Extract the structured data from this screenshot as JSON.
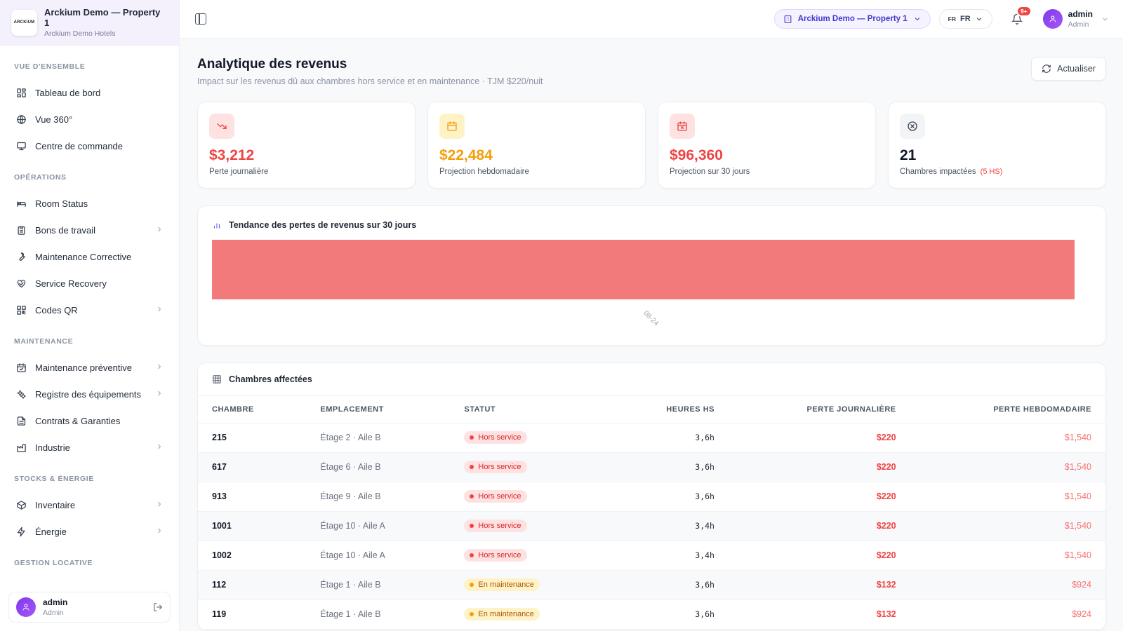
{
  "brand": {
    "logo_text": "ARCKIUM",
    "title": "Arckium Demo — Property 1",
    "subtitle": "Arckium Demo Hotels"
  },
  "sidebar": {
    "sections": [
      {
        "title": "VUE D'ENSEMBLE",
        "items": [
          {
            "label": "Tableau de bord",
            "icon": "dashboard-icon",
            "chevron": false
          },
          {
            "label": "Vue 360°",
            "icon": "globe-icon",
            "chevron": false
          },
          {
            "label": "Centre de commande",
            "icon": "monitor-icon",
            "chevron": false
          }
        ]
      },
      {
        "title": "OPÉRATIONS",
        "items": [
          {
            "label": "Room Status",
            "icon": "bed-icon",
            "chevron": false
          },
          {
            "label": "Bons de travail",
            "icon": "clipboard-icon",
            "chevron": true
          },
          {
            "label": "Maintenance Corrective",
            "icon": "wrench-icon",
            "chevron": false
          },
          {
            "label": "Service Recovery",
            "icon": "heart-handshake-icon",
            "chevron": false
          },
          {
            "label": "Codes QR",
            "icon": "qr-code-icon",
            "chevron": true
          }
        ]
      },
      {
        "title": "MAINTENANCE",
        "items": [
          {
            "label": "Maintenance préventive",
            "icon": "calendar-check-icon",
            "chevron": true
          },
          {
            "label": "Registre des équipements",
            "icon": "cogs-icon",
            "chevron": true
          },
          {
            "label": "Contrats & Garanties",
            "icon": "file-text-icon",
            "chevron": false
          },
          {
            "label": "Industrie",
            "icon": "factory-icon",
            "chevron": true
          }
        ]
      },
      {
        "title": "STOCKS & ÉNERGIE",
        "items": [
          {
            "label": "Inventaire",
            "icon": "package-icon",
            "chevron": true
          },
          {
            "label": "Énergie",
            "icon": "zap-icon",
            "chevron": true
          }
        ]
      },
      {
        "title": "GESTION LOCATIVE",
        "items": []
      }
    ],
    "footer": {
      "name": "admin",
      "role": "Admin"
    }
  },
  "topbar": {
    "property": "Arckium Demo — Property 1",
    "lang_flag": "FR",
    "lang": "FR",
    "notif_badge": "9+",
    "user_name": "admin",
    "user_role": "Admin"
  },
  "page": {
    "title": "Analytique des revenus",
    "subtitle": "Impact sur les revenus dû aux chambres hors service et en maintenance · TJM $220/nuit",
    "refresh_label": "Actualiser"
  },
  "kpis": [
    {
      "value": "$3,212",
      "label": "Perte journalière",
      "extra": "",
      "color": "#ef4444",
      "bg": "#fee2e2",
      "icon": "trending-down-icon"
    },
    {
      "value": "$22,484",
      "label": "Projection hebdomadaire",
      "extra": "",
      "color": "#f59e0b",
      "bg": "#fef3c7",
      "icon": "calendar-icon"
    },
    {
      "value": "$96,360",
      "label": "Projection sur 30 jours",
      "extra": "",
      "color": "#ef4444",
      "bg": "#fee2e2",
      "icon": "calendar-x-icon"
    },
    {
      "value": "21",
      "label": "Chambres impactées",
      "extra": "(5 HS)",
      "color": "#111827",
      "bg": "#f3f4f6",
      "icon": "circle-x-icon"
    }
  ],
  "chart": {
    "title": "Tendance des pertes de revenus sur 30 jours"
  },
  "chart_data": {
    "type": "area",
    "title": "Tendance des pertes de revenus sur 30 jours",
    "x": [
      "08-24"
    ],
    "series": [
      {
        "values": [
          3212
        ]
      }
    ],
    "color": "#f27a7a",
    "grid": false
  },
  "table": {
    "title": "Chambres affectées",
    "columns": [
      "CHAMBRE",
      "EMPLACEMENT",
      "STATUT",
      "HEURES HS",
      "PERTE JOURNALIÈRE",
      "PERTE HEBDOMADAIRE"
    ],
    "rows": [
      {
        "room": "215",
        "location": "Étage 2 · Aile B",
        "status": "Hors service",
        "status_type": "hs",
        "hours": "3,6h",
        "daily": "$220",
        "weekly": "$1,540"
      },
      {
        "room": "617",
        "location": "Étage 6 · Aile B",
        "status": "Hors service",
        "status_type": "hs",
        "hours": "3,6h",
        "daily": "$220",
        "weekly": "$1,540"
      },
      {
        "room": "913",
        "location": "Étage 9 · Aile B",
        "status": "Hors service",
        "status_type": "hs",
        "hours": "3,6h",
        "daily": "$220",
        "weekly": "$1,540"
      },
      {
        "room": "1001",
        "location": "Étage 10 · Aile A",
        "status": "Hors service",
        "status_type": "hs",
        "hours": "3,4h",
        "daily": "$220",
        "weekly": "$1,540"
      },
      {
        "room": "1002",
        "location": "Étage 10 · Aile A",
        "status": "Hors service",
        "status_type": "hs",
        "hours": "3,4h",
        "daily": "$220",
        "weekly": "$1,540"
      },
      {
        "room": "112",
        "location": "Étage 1 · Aile B",
        "status": "En maintenance",
        "status_type": "mt",
        "hours": "3,6h",
        "daily": "$132",
        "weekly": "$924"
      },
      {
        "room": "119",
        "location": "Étage 1 · Aile B",
        "status": "En maintenance",
        "status_type": "mt",
        "hours": "3,6h",
        "daily": "$132",
        "weekly": "$924"
      }
    ]
  }
}
